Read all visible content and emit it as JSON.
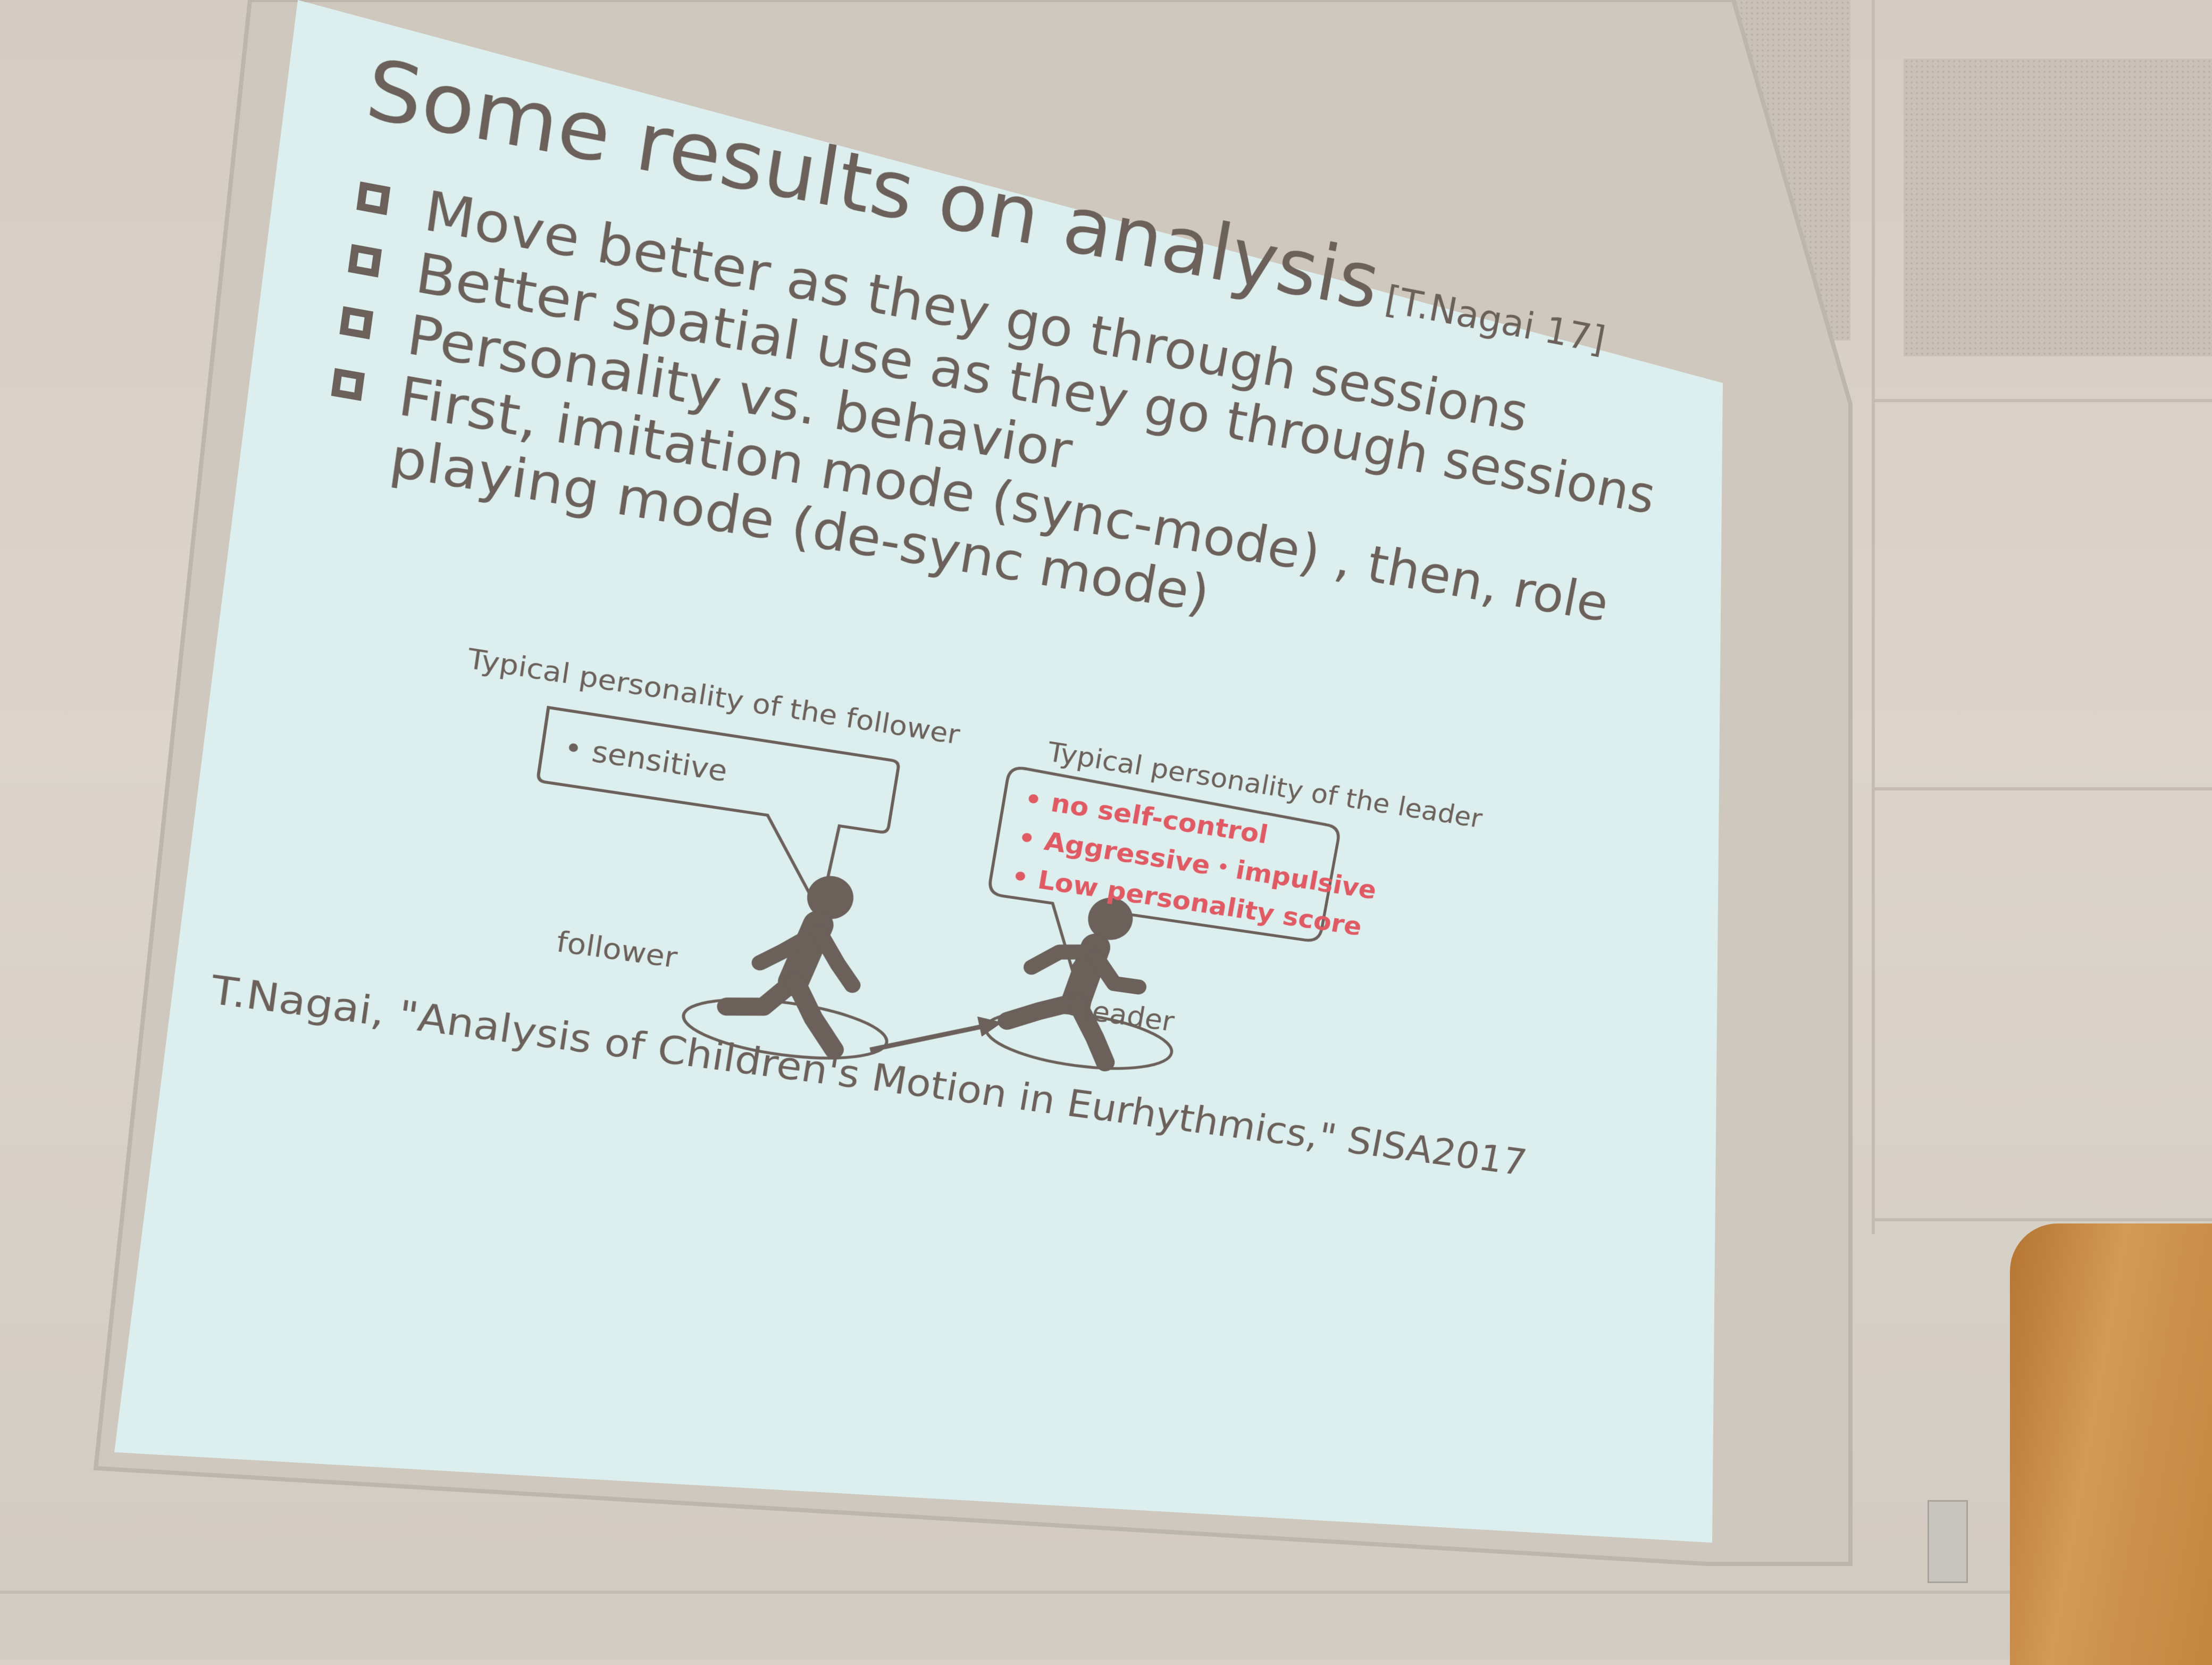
{
  "slide": {
    "title": "Some results on analysis",
    "title_citation": "[T.Nagai 17]",
    "bullets": [
      "Move better as they go through sessions",
      "Better spatial use as they go through sessions",
      "Personality vs. behavior",
      "First, imitation mode (sync-mode) , then, role",
      "playing mode (de-sync mode)"
    ],
    "follower_caption": "Typical personality of the follower",
    "follower_traits": [
      "• sensitive"
    ],
    "leader_caption": "Typical personality of the leader",
    "leader_traits": [
      "• no self-control",
      "• Aggressive・impulsive",
      "• Low personality score"
    ],
    "follower_label": "follower",
    "leader_label": "leader",
    "footer": "T.Nagai, \"Analysis of Children's Motion in Eurhythmics,\" SISA2017"
  },
  "colors": {
    "slide_bg": "#dcefee",
    "text": "#6b605a",
    "accent": "#e05a64",
    "wall": "#d6cec4",
    "lectern": "#c68a45"
  },
  "icons": [
    "checkbox-icon",
    "follower-figure-icon",
    "leader-figure-icon",
    "arrow-icon"
  ]
}
